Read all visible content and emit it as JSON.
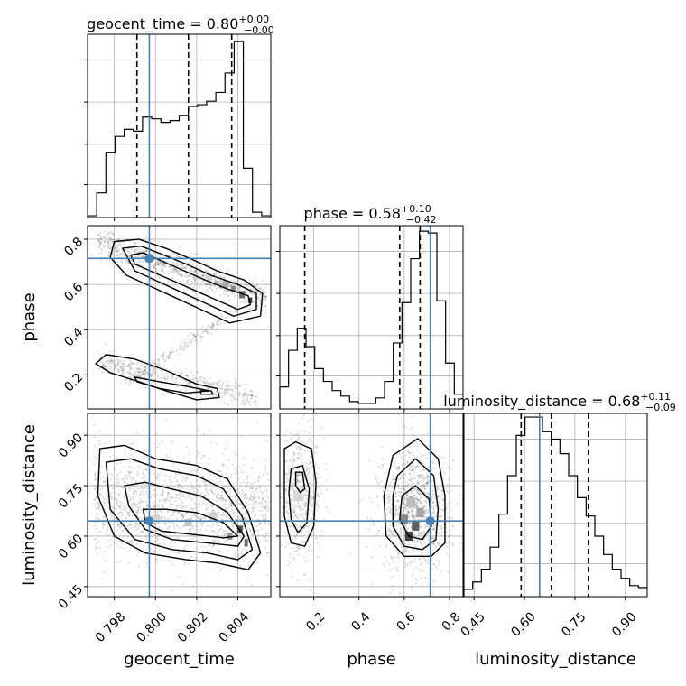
{
  "chart_data": {
    "type": "corner",
    "parameters": [
      {
        "name": "geocent_time",
        "title_main": "geocent_time = 0.80",
        "title_sup": "+0.00",
        "title_sub": "−0.00",
        "range": [
          0.7967,
          0.8056
        ],
        "ticks": [
          0.798,
          0.8,
          0.802,
          0.804
        ],
        "tick_labels": [
          "0.798",
          "0.800",
          "0.802",
          "0.804"
        ],
        "truth": 0.7997,
        "quantiles": [
          0.7991,
          0.8016,
          0.8037
        ],
        "hist_counts": [
          0.01,
          0.14,
          0.37,
          0.46,
          0.5,
          0.49,
          0.57,
          0.56,
          0.54,
          0.55,
          0.58,
          0.63,
          0.64,
          0.66,
          0.71,
          0.82,
          1.0,
          0.28,
          0.03,
          0.01
        ],
        "histmax": 1.04
      },
      {
        "name": "phase",
        "title_main": "phase = 0.58",
        "title_sup": "+0.10",
        "title_sub": "−0.42",
        "range": [
          0.05,
          0.86
        ],
        "ticks": [
          0.2,
          0.4,
          0.6,
          0.8
        ],
        "tick_labels": [
          "0.2",
          "0.4",
          "0.6",
          "0.8"
        ],
        "truth": 0.715,
        "quantiles": [
          0.16,
          0.58,
          0.67
        ],
        "hist_counts": [
          0.12,
          0.32,
          0.44,
          0.34,
          0.22,
          0.15,
          0.1,
          0.07,
          0.04,
          0.03,
          0.03,
          0.06,
          0.15,
          0.36,
          0.58,
          0.82,
          0.97,
          0.96,
          0.59,
          0.25,
          0.08
        ],
        "histmax": 1.0
      },
      {
        "name": "luminosity_distance",
        "title_main": "luminosity_distance = 0.68",
        "title_sup": "+0.11",
        "title_sub": "−0.09",
        "range": [
          0.42,
          0.965
        ],
        "ticks": [
          0.45,
          0.6,
          0.75,
          0.9
        ],
        "tick_labels": [
          "0.45",
          "0.60",
          "0.75",
          "0.90"
        ],
        "truth": 0.645,
        "quantiles": [
          0.59,
          0.68,
          0.79
        ],
        "hist_counts": [
          0.04,
          0.08,
          0.15,
          0.27,
          0.45,
          0.66,
          0.88,
          0.98,
          0.98,
          0.9,
          0.86,
          0.78,
          0.66,
          0.54,
          0.44,
          0.33,
          0.23,
          0.15,
          0.1,
          0.06,
          0.05
        ],
        "histmax": 1.0
      }
    ],
    "axis_labels": {
      "geocent_time": "geocent_time",
      "phase": "phase",
      "luminosity_distance": "luminosity_distance"
    },
    "truth_color": "#4682b4",
    "grid": true,
    "contours": {
      "phase_vs_geocent_time": [
        [
          [
            0.7988,
            0.73
          ],
          [
            0.7994,
            0.74
          ],
          [
            0.8004,
            0.7
          ],
          [
            0.8014,
            0.66
          ],
          [
            0.8024,
            0.62
          ],
          [
            0.8035,
            0.58
          ],
          [
            0.8045,
            0.55
          ],
          [
            0.8046,
            0.51
          ],
          [
            0.804,
            0.49
          ],
          [
            0.803,
            0.53
          ],
          [
            0.802,
            0.57
          ],
          [
            0.801,
            0.61
          ],
          [
            0.8,
            0.65
          ],
          [
            0.799,
            0.69
          ]
        ],
        [
          [
            0.7984,
            0.76
          ],
          [
            0.7993,
            0.77
          ],
          [
            0.8004,
            0.73
          ],
          [
            0.8015,
            0.69
          ],
          [
            0.8027,
            0.64
          ],
          [
            0.804,
            0.6
          ],
          [
            0.8049,
            0.56
          ],
          [
            0.8049,
            0.49
          ],
          [
            0.8038,
            0.46
          ],
          [
            0.8026,
            0.51
          ],
          [
            0.8014,
            0.56
          ],
          [
            0.8002,
            0.61
          ],
          [
            0.799,
            0.66
          ]
        ],
        [
          [
            0.798,
            0.79
          ],
          [
            0.7992,
            0.8
          ],
          [
            0.8005,
            0.76
          ],
          [
            0.8018,
            0.71
          ],
          [
            0.803,
            0.66
          ],
          [
            0.8043,
            0.62
          ],
          [
            0.8052,
            0.56
          ],
          [
            0.8051,
            0.46
          ],
          [
            0.8036,
            0.43
          ],
          [
            0.8022,
            0.49
          ],
          [
            0.801,
            0.54
          ],
          [
            0.7998,
            0.59
          ],
          [
            0.7986,
            0.64
          ],
          [
            0.7978,
            0.72
          ]
        ],
        [
          [
            0.7976,
            0.29
          ],
          [
            0.799,
            0.27
          ],
          [
            0.8005,
            0.22
          ],
          [
            0.802,
            0.16
          ],
          [
            0.803,
            0.14
          ],
          [
            0.8031,
            0.1
          ],
          [
            0.802,
            0.09
          ],
          [
            0.8005,
            0.13
          ],
          [
            0.7992,
            0.17
          ],
          [
            0.7978,
            0.21
          ],
          [
            0.7971,
            0.25
          ]
        ],
        [
          [
            0.799,
            0.19
          ],
          [
            0.8002,
            0.17
          ],
          [
            0.8015,
            0.15
          ],
          [
            0.8026,
            0.13
          ],
          [
            0.8015,
            0.12
          ],
          [
            0.8002,
            0.14
          ],
          [
            0.7991,
            0.17
          ]
        ],
        [
          [
            0.8022,
            0.13
          ],
          [
            0.8027,
            0.13
          ],
          [
            0.8028,
            0.115
          ],
          [
            0.8022,
            0.115
          ]
        ]
      ],
      "luminosity_distance_vs_geocent_time": [
        [
          [
            0.7973,
            0.86
          ],
          [
            0.7985,
            0.87
          ],
          [
            0.8,
            0.83
          ],
          [
            0.802,
            0.81
          ],
          [
            0.8035,
            0.77
          ],
          [
            0.8045,
            0.67
          ],
          [
            0.8051,
            0.55
          ],
          [
            0.8045,
            0.5
          ],
          [
            0.803,
            0.52
          ],
          [
            0.8015,
            0.53
          ],
          [
            0.7995,
            0.55
          ],
          [
            0.798,
            0.6
          ],
          [
            0.7972,
            0.72
          ]
        ],
        [
          [
            0.7976,
            0.82
          ],
          [
            0.7988,
            0.83
          ],
          [
            0.8002,
            0.8
          ],
          [
            0.802,
            0.78
          ],
          [
            0.8033,
            0.74
          ],
          [
            0.8042,
            0.66
          ],
          [
            0.8047,
            0.56
          ],
          [
            0.804,
            0.53
          ],
          [
            0.8025,
            0.55
          ],
          [
            0.8008,
            0.56
          ],
          [
            0.799,
            0.59
          ],
          [
            0.7978,
            0.68
          ]
        ],
        [
          [
            0.7985,
            0.75
          ],
          [
            0.7995,
            0.76
          ],
          [
            0.8008,
            0.74
          ],
          [
            0.8022,
            0.72
          ],
          [
            0.8035,
            0.67
          ],
          [
            0.8043,
            0.6
          ],
          [
            0.804,
            0.57
          ],
          [
            0.8025,
            0.58
          ],
          [
            0.8008,
            0.59
          ],
          [
            0.7995,
            0.62
          ],
          [
            0.7987,
            0.69
          ]
        ],
        [
          [
            0.7994,
            0.68
          ],
          [
            0.8005,
            0.68
          ],
          [
            0.802,
            0.67
          ],
          [
            0.8033,
            0.64
          ],
          [
            0.804,
            0.6
          ],
          [
            0.8033,
            0.595
          ],
          [
            0.8018,
            0.605
          ],
          [
            0.8003,
            0.615
          ],
          [
            0.7995,
            0.64
          ]
        ]
      ],
      "luminosity_distance_vs_phase": [
        [
          [
            0.07,
            0.86
          ],
          [
            0.12,
            0.88
          ],
          [
            0.19,
            0.86
          ],
          [
            0.21,
            0.76
          ],
          [
            0.2,
            0.63
          ],
          [
            0.16,
            0.57
          ],
          [
            0.1,
            0.58
          ],
          [
            0.07,
            0.66
          ]
        ],
        [
          [
            0.1,
            0.8
          ],
          [
            0.15,
            0.81
          ],
          [
            0.18,
            0.74
          ],
          [
            0.17,
            0.64
          ],
          [
            0.13,
            0.61
          ],
          [
            0.1,
            0.65
          ],
          [
            0.09,
            0.73
          ]
        ],
        [
          [
            0.12,
            0.79
          ],
          [
            0.15,
            0.79
          ],
          [
            0.16,
            0.74
          ],
          [
            0.14,
            0.73
          ],
          [
            0.12,
            0.75
          ]
        ],
        [
          [
            0.55,
            0.84
          ],
          [
            0.66,
            0.89
          ],
          [
            0.75,
            0.83
          ],
          [
            0.78,
            0.72
          ],
          [
            0.78,
            0.58
          ],
          [
            0.72,
            0.54
          ],
          [
            0.6,
            0.54
          ],
          [
            0.52,
            0.6
          ],
          [
            0.51,
            0.72
          ]
        ],
        [
          [
            0.57,
            0.78
          ],
          [
            0.65,
            0.83
          ],
          [
            0.73,
            0.78
          ],
          [
            0.75,
            0.68
          ],
          [
            0.74,
            0.59
          ],
          [
            0.68,
            0.56
          ],
          [
            0.6,
            0.57
          ],
          [
            0.55,
            0.63
          ],
          [
            0.55,
            0.72
          ]
        ],
        [
          [
            0.59,
            0.72
          ],
          [
            0.65,
            0.75
          ],
          [
            0.71,
            0.71
          ],
          [
            0.72,
            0.63
          ],
          [
            0.68,
            0.59
          ],
          [
            0.62,
            0.6
          ],
          [
            0.58,
            0.65
          ]
        ]
      ]
    }
  }
}
